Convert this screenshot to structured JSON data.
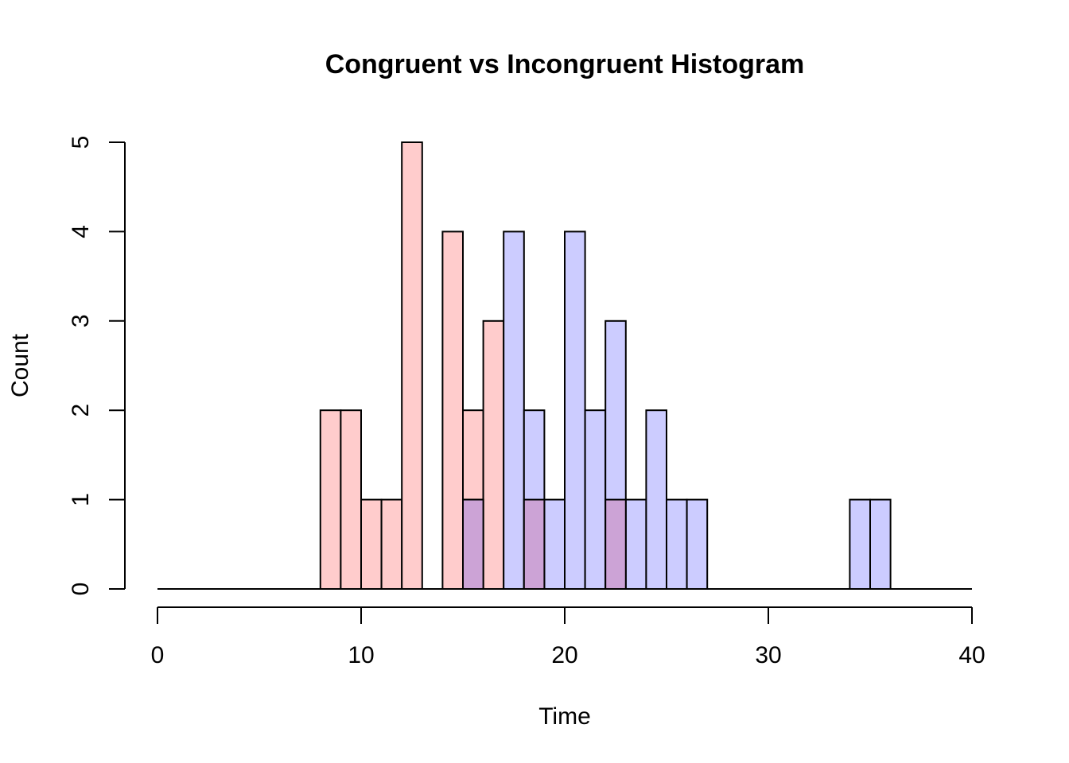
{
  "chart_data": {
    "type": "bar",
    "title": "Congruent vs Incongruent Histogram",
    "xlabel": "Time",
    "ylabel": "Count",
    "xlim": [
      0,
      40
    ],
    "ylim": [
      0,
      5
    ],
    "xticks": [
      0,
      10,
      20,
      30,
      40
    ],
    "yticks": [
      0,
      1,
      2,
      3,
      4,
      5
    ],
    "bin_width": 1,
    "grid": false,
    "series": [
      {
        "color": "#FFCCCC",
        "bins": [
          {
            "start": 8,
            "count": 2
          },
          {
            "start": 9,
            "count": 2
          },
          {
            "start": 10,
            "count": 1
          },
          {
            "start": 11,
            "count": 1
          },
          {
            "start": 12,
            "count": 5
          },
          {
            "start": 14,
            "count": 4
          },
          {
            "start": 15,
            "count": 2
          },
          {
            "start": 16,
            "count": 3
          },
          {
            "start": 18,
            "count": 1
          },
          {
            "start": 22,
            "count": 1
          }
        ]
      },
      {
        "color": "#CCCCFF",
        "bins": [
          {
            "start": 15,
            "count": 1
          },
          {
            "start": 17,
            "count": 4
          },
          {
            "start": 18,
            "count": 2
          },
          {
            "start": 19,
            "count": 1
          },
          {
            "start": 20,
            "count": 4
          },
          {
            "start": 21,
            "count": 2
          },
          {
            "start": 22,
            "count": 3
          },
          {
            "start": 23,
            "count": 1
          },
          {
            "start": 24,
            "count": 2
          },
          {
            "start": 25,
            "count": 1
          },
          {
            "start": 26,
            "count": 1
          },
          {
            "start": 34,
            "count": 1
          },
          {
            "start": 35,
            "count": 1
          }
        ]
      }
    ],
    "overlap_color": "#CCA3D6"
  }
}
